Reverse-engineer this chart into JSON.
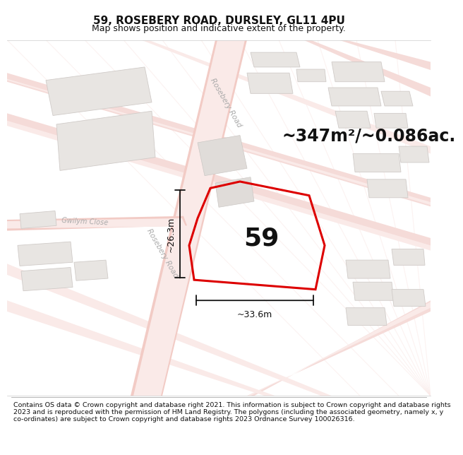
{
  "title": "59, ROSEBERY ROAD, DURSLEY, GL11 4PU",
  "subtitle": "Map shows position and indicative extent of the property.",
  "area_text": "~347m²/~0.086ac.",
  "property_number": "59",
  "dim_width": "~33.6m",
  "dim_height": "~26.3m",
  "footer": "Contains OS data © Crown copyright and database right 2021. This information is subject to Crown copyright and database rights 2023 and is reproduced with the permission of HM Land Registry. The polygons (including the associated geometry, namely x, y co-ordinates) are subject to Crown copyright and database rights 2023 Ordnance Survey 100026316.",
  "map_bg": "#f9f7f5",
  "road_color_main": "#f2cbc5",
  "road_color_light": "#f5dbd8",
  "road_color_lighter": "#faeae8",
  "building_fill": "#e8e5e2",
  "building_edge": "#d0cbc8",
  "property_edge": "#dd0000",
  "dim_line_color": "#111111",
  "title_fontsize": 11,
  "subtitle_fontsize": 9,
  "area_fontsize": 17,
  "number_fontsize": 26,
  "dim_fontsize": 9,
  "footer_fontsize": 6.8,
  "road_label_fontsize": 7.5,
  "road_label_color": "#aaaaaa"
}
